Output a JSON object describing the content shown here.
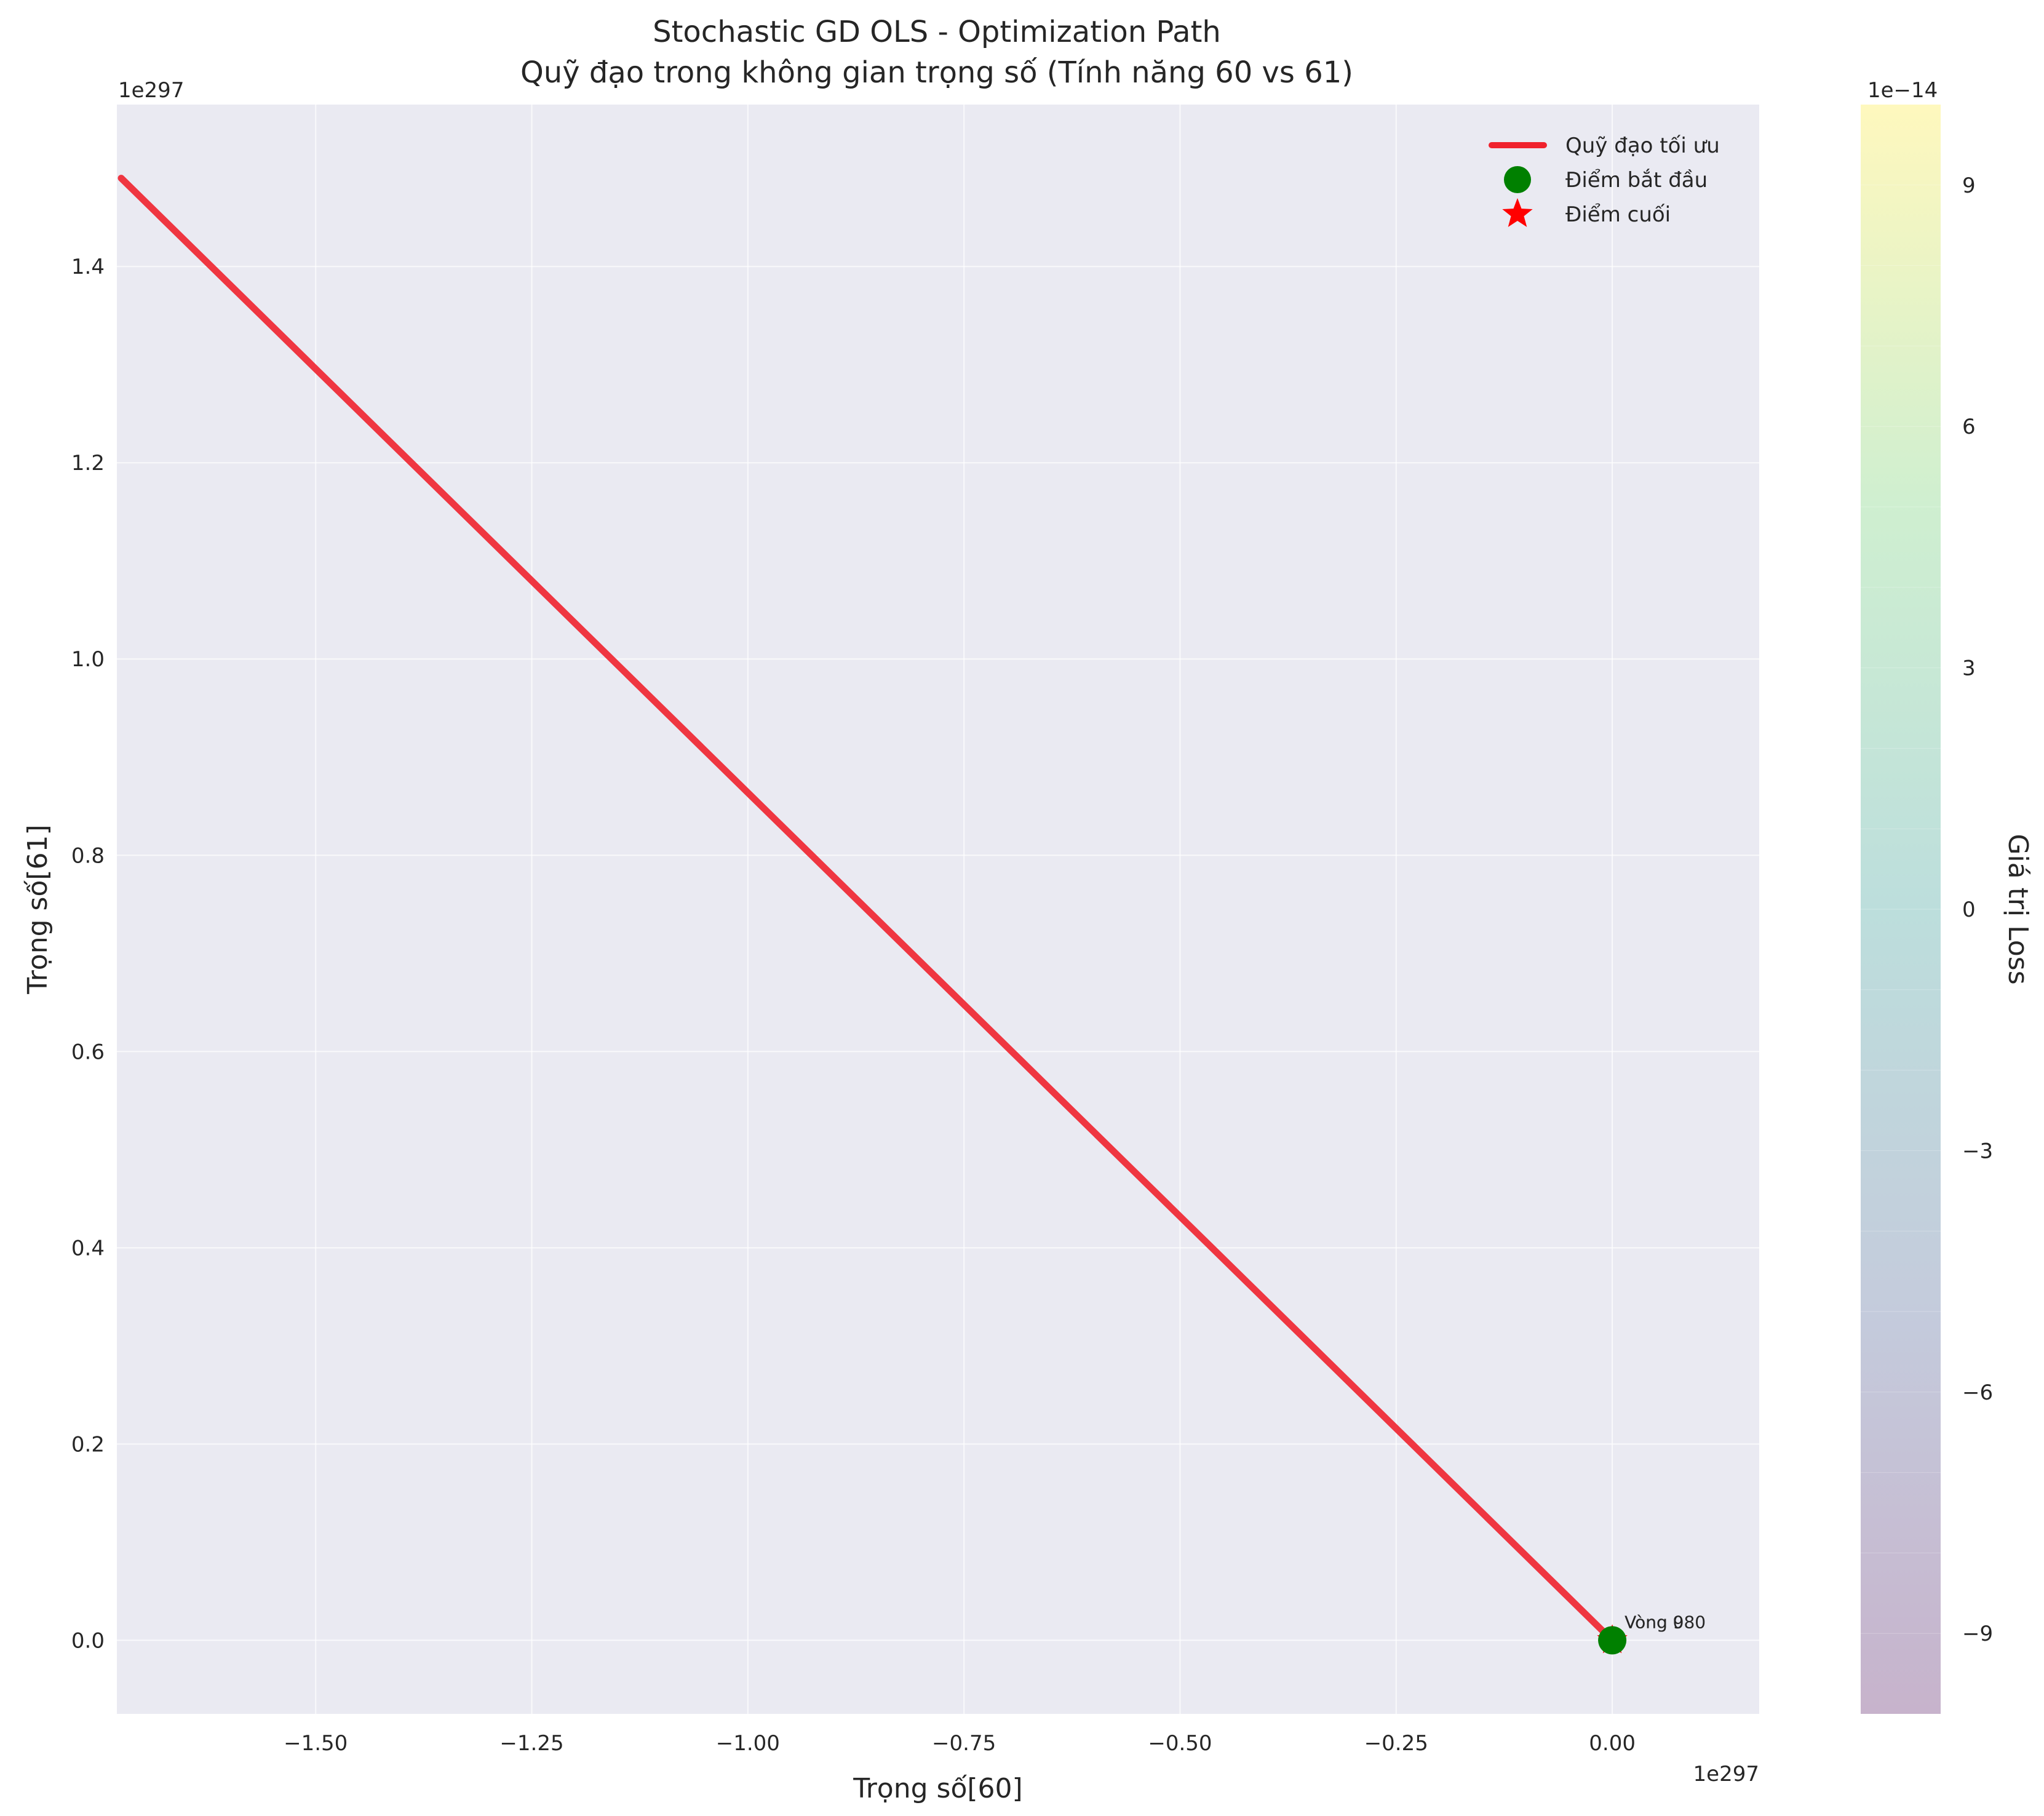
{
  "chart_data": {
    "type": "line",
    "title_line1": "Stochastic GD OLS - Optimization Path",
    "title_line2": "Quỹ đạo trong không gian trọng số (Tính năng 60 vs 61)",
    "xlabel": "Trọng số[60]",
    "ylabel": "Trọng số[61]",
    "x_offset_label": "1e297",
    "y_offset_label": "1e297",
    "xlim": [
      -1.73,
      0.17
    ],
    "ylim": [
      -0.075,
      1.565
    ],
    "xticks": [
      -1.5,
      -1.25,
      -1.0,
      -0.75,
      -0.5,
      -0.25,
      0.0
    ],
    "xtick_labels": [
      "−1.50",
      "−1.25",
      "−1.00",
      "−0.75",
      "−0.50",
      "−0.25",
      "0.00"
    ],
    "yticks": [
      0.0,
      0.2,
      0.4,
      0.6,
      0.8,
      1.0,
      1.2,
      1.4
    ],
    "ytick_labels": [
      "0.0",
      "0.2",
      "0.4",
      "0.6",
      "0.8",
      "1.0",
      "1.2",
      "1.4"
    ],
    "grid": true,
    "series": [
      {
        "name": "Quỹ đạo tối ưu",
        "color": "#f0222d",
        "x": [
          0.0,
          -1.725
        ],
        "y": [
          0.0,
          1.49
        ]
      }
    ],
    "start_point": {
      "name": "Điểm bắt đầu",
      "x": 0.0,
      "y": 0.0,
      "color": "#008000"
    },
    "end_point": {
      "name": "Điểm cuối",
      "x": 0.0,
      "y": 0.0,
      "color": "#ff0000"
    },
    "annotations": [
      {
        "text": "Vòng 0",
        "x": 0.0,
        "y": 0.0
      },
      {
        "text": "Vòng 980",
        "x": 0.0,
        "y": 0.0
      }
    ],
    "legend_position": "top-right",
    "colorbar": {
      "label": "Giá trị Loss",
      "offset_label": "1e−14",
      "range": [
        -10,
        10
      ],
      "ticks": [
        -9,
        -6,
        -3,
        0,
        3,
        6,
        9
      ],
      "tick_labels": [
        "−9",
        "−6",
        "−3",
        "0",
        "3",
        "6",
        "9"
      ],
      "colormap": "viridis (alpha 0.3)"
    }
  }
}
